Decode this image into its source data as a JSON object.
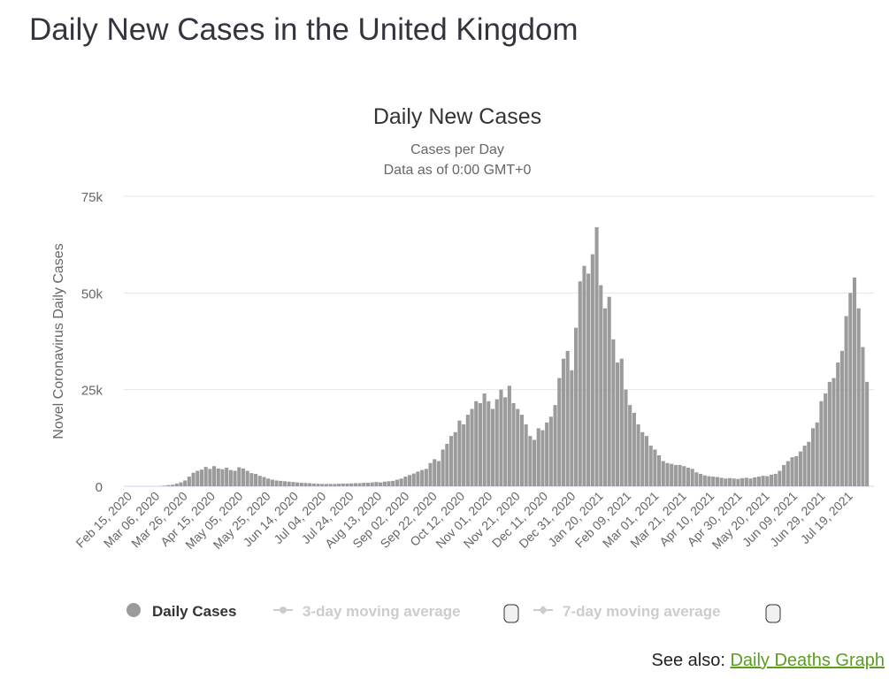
{
  "page": {
    "title": "Daily New Cases in the United Kingdom",
    "see_also_label": "See also:",
    "see_also_link": "Daily Deaths Graph"
  },
  "chart_data": {
    "type": "bar",
    "title": "Daily New Cases",
    "subtitle_1": "Cases per Day",
    "subtitle_2": "Data as of 0:00 GMT+0",
    "ylabel": "Novel Coronavirus Daily Cases",
    "xlabel": "",
    "value_unit": "thousands of cases",
    "ylim": [
      0,
      75
    ],
    "yticks": [
      {
        "value": 0,
        "label": "0"
      },
      {
        "value": 25,
        "label": "25k"
      },
      {
        "value": 50,
        "label": "50k"
      },
      {
        "value": 75,
        "label": "75k"
      }
    ],
    "grid": true,
    "x_start": "Feb 15, 2020",
    "x_step_days": 3,
    "xticks": [
      "Feb 15, 2020",
      "Mar 06, 2020",
      "Mar 26, 2020",
      "Apr 15, 2020",
      "May 05, 2020",
      "May 25, 2020",
      "Jun 14, 2020",
      "Jul 04, 2020",
      "Jul 24, 2020",
      "Aug 13, 2020",
      "Sep 02, 2020",
      "Sep 22, 2020",
      "Oct 12, 2020",
      "Nov 01, 2020",
      "Nov 21, 2020",
      "Dec 11, 2020",
      "Dec 31, 2020",
      "Jan 20, 2021",
      "Feb 09, 2021",
      "Mar 01, 2021",
      "Mar 21, 2021",
      "Apr 10, 2021",
      "Apr 30, 2021",
      "May 20, 2021",
      "Jun 09, 2021",
      "Jun 29, 2021",
      "Jul 19, 2021"
    ],
    "xtick_step_days": 20,
    "values": [
      0,
      0,
      0,
      0,
      0,
      0,
      0.01,
      0.05,
      0.15,
      0.3,
      0.4,
      0.7,
      1.0,
      1.5,
      2.5,
      3.5,
      4.0,
      4.3,
      5.0,
      4.5,
      5.2,
      4.6,
      4.4,
      4.8,
      4.2,
      4.0,
      4.9,
      4.6,
      4.0,
      3.4,
      3.2,
      2.7,
      2.4,
      2.0,
      1.7,
      1.5,
      1.4,
      1.3,
      1.2,
      1.1,
      1.0,
      0.9,
      0.85,
      0.8,
      0.7,
      0.65,
      0.6,
      0.6,
      0.6,
      0.6,
      0.65,
      0.7,
      0.7,
      0.75,
      0.8,
      0.8,
      0.9,
      0.9,
      1.0,
      1.1,
      1.0,
      1.2,
      1.3,
      1.4,
      1.7,
      2.0,
      2.5,
      2.9,
      3.3,
      3.8,
      4.2,
      4.5,
      6.0,
      7.0,
      6.5,
      9.5,
      11.0,
      13.0,
      14.0,
      17.0,
      16.0,
      18.5,
      20.0,
      22.0,
      21.5,
      24.0,
      22.0,
      20.0,
      22.5,
      25.0,
      23.0,
      26.0,
      21.5,
      20.0,
      18.5,
      16.0,
      13.0,
      12.0,
      15.0,
      14.5,
      16.5,
      18.0,
      21.0,
      28.0,
      33.0,
      35.0,
      30.0,
      41.0,
      53.0,
      57.0,
      55.0,
      60.0,
      67.0,
      52.0,
      46.0,
      49.0,
      38.0,
      32.0,
      33.0,
      25.0,
      21.0,
      19.0,
      16.0,
      14.0,
      13.0,
      10.5,
      9.5,
      8.0,
      6.5,
      6.0,
      5.8,
      5.5,
      5.5,
      5.2,
      4.8,
      4.5,
      3.6,
      3.2,
      2.8,
      2.6,
      2.5,
      2.4,
      2.2,
      2.0,
      2.1,
      2.0,
      1.9,
      2.1,
      2.2,
      2.0,
      2.3,
      2.5,
      2.7,
      2.6,
      3.0,
      3.2,
      4.0,
      5.5,
      6.5,
      7.5,
      7.8,
      9.0,
      10.5,
      11.5,
      15.0,
      16.5,
      22.0,
      24.0,
      27.0,
      28.0,
      32.0,
      35.0,
      44.0,
      50.0,
      54.0,
      46.0,
      36.0,
      27.0
    ],
    "legend_position": "bottom",
    "legend": [
      {
        "label": "Daily Cases",
        "active": true
      },
      {
        "label": "3-day moving average",
        "active": false
      },
      {
        "label": "7-day moving average",
        "active": false
      }
    ],
    "colors": {
      "bar": "#9b9b9b",
      "grid": "#e6e6e6",
      "baseline": "#ccd6eb",
      "inactive": "#cccccc"
    }
  }
}
